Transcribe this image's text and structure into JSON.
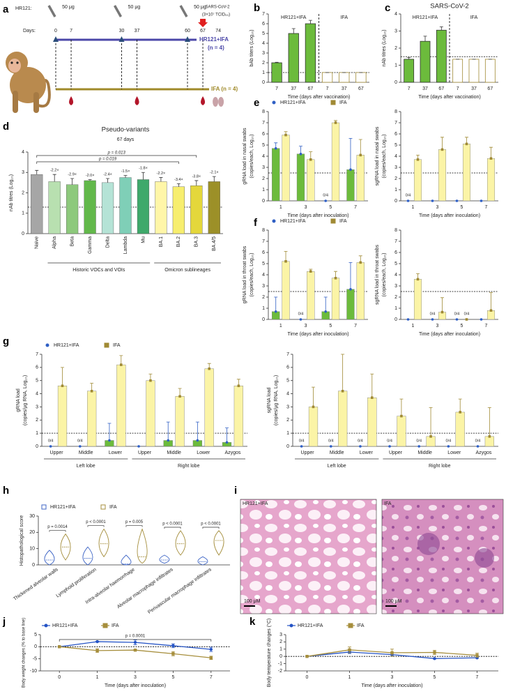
{
  "panels": [
    "a",
    "b",
    "c",
    "d",
    "e",
    "f",
    "g",
    "h",
    "i",
    "j",
    "k"
  ],
  "schematic": {
    "label": "HR121:",
    "doses": [
      "50 μg",
      "50 μg",
      "50 μg"
    ],
    "challenge": [
      "SARS-CoV-2",
      "(3×10⁷ TCID₅₀)"
    ],
    "days_label": "Days:",
    "days": [
      0,
      7,
      30,
      37,
      60,
      67,
      74
    ],
    "group1": [
      "HR121+IFA",
      "(n = 4)"
    ],
    "group2": "IFA (n = 4)"
  },
  "histology": {
    "left_label": "HR121+IFA",
    "right_label": "IFA",
    "scale_bars": [
      "100 μM",
      "100 μM"
    ]
  },
  "chart_data": [
    {
      "type": "bar",
      "layout": "split",
      "ylabel": "bAb titers (Log₁₀)",
      "xlabel": "Time (days after vaccination)",
      "categories": [
        "7",
        "37",
        "67"
      ],
      "ylim": [
        0,
        7
      ],
      "yticks": [
        0,
        1,
        2,
        3,
        4,
        5,
        6,
        7
      ],
      "threshold": 1,
      "series": [
        {
          "name": "HR121+IFA",
          "color": "#6cbb3c",
          "edge_color": "#333333",
          "values": [
            2.0,
            5.0,
            6.0
          ],
          "errors": [
            0.05,
            0.5,
            0.35
          ]
        },
        {
          "name": "IFA",
          "color": "#ffffff",
          "edge_color": "#a08a34",
          "values": [
            1,
            1,
            1
          ],
          "errors": [
            0,
            0,
            0
          ]
        }
      ]
    },
    {
      "type": "bar",
      "layout": "split",
      "title": "SARS-CoV-2",
      "ylabel": "nAb titres (Log₁₀)",
      "xlabel": "Time (days after vaccination)",
      "categories": [
        "7",
        "37",
        "67"
      ],
      "ylim": [
        0,
        4
      ],
      "yticks": [
        0,
        1,
        2,
        3,
        4
      ],
      "threshold": 1.5,
      "series": [
        {
          "name": "HR121+IFA",
          "color": "#6cbb3c",
          "edge_color": "#333333",
          "values": [
            1.35,
            2.4,
            3.05
          ],
          "errors": [
            0.1,
            0.3,
            0.2
          ]
        },
        {
          "name": "IFA",
          "color": "#ffffff",
          "edge_color": "#a08a34",
          "values": [
            1.35,
            1.35,
            1.35
          ],
          "errors": [
            0,
            0,
            0
          ]
        }
      ]
    },
    {
      "type": "bar",
      "title": "Pseudo-variants",
      "subtitle": "67 days",
      "ylabel": "nAb titres (Log₁₀)",
      "categories": [
        "Naive",
        "Alpha",
        "Beta",
        "Gamma",
        "Delta",
        "Lambda",
        "Mu",
        "BA.1",
        "BA.2",
        "BA.3",
        "BA.4/5"
      ],
      "values": [
        2.9,
        2.55,
        2.4,
        2.6,
        2.5,
        2.75,
        2.65,
        2.55,
        2.3,
        2.35,
        2.55
      ],
      "errors": [
        0.2,
        0.35,
        0.3,
        0.05,
        0.2,
        0.1,
        0.35,
        0.2,
        0.15,
        0.25,
        0.25
      ],
      "colors": [
        "#a6a6a6",
        "#b8e0b0",
        "#8dc97c",
        "#62b84a",
        "#b5e3d6",
        "#7fcfb7",
        "#3fa96b",
        "#fff6a8",
        "#f7ee6e",
        "#e4d73b",
        "#9c9028"
      ],
      "fold_labels": [
        null,
        "-2.2×",
        "-2.9×",
        "-2.0×",
        "-2.4×",
        "-1.5×",
        "-1.8×",
        "-2.2×",
        "-3.4×",
        "-3.8×",
        "-2.1×"
      ],
      "p_labels": [
        "p = 0.013",
        "p = 0.019"
      ],
      "groups": [
        "Historic VOCs and VOIs",
        "Omicron sublineages"
      ],
      "ylim": [
        0,
        4
      ],
      "yticks": [
        0,
        1,
        2,
        3,
        4
      ],
      "threshold": 1.3
    },
    {
      "type": "bar",
      "legend": "top",
      "ylabel": [
        "gRNA load in nasal swabs",
        "(copies/each, Log₁₀)"
      ],
      "xlabel": "Time (days after inoculation)",
      "categories": [
        "1",
        "3",
        "5",
        "7"
      ],
      "ylim": [
        0,
        8
      ],
      "yticks": [
        0,
        1,
        2,
        3,
        4,
        5,
        6,
        7,
        8
      ],
      "threshold": 2.5,
      "series": [
        {
          "name": "HR121+IFA",
          "color": "#2f5fc4",
          "bar_color": "#6cbb3c",
          "marker": "circle",
          "values": [
            4.7,
            4.2,
            0,
            2.8
          ],
          "errors": [
            0.5,
            0.7,
            0,
            2.8
          ],
          "positive_counts": [
            null,
            null,
            "0/4",
            null
          ]
        },
        {
          "name": "IFA",
          "color": "#a08a34",
          "bar_color": "#fbf4a6",
          "marker": "square",
          "values": [
            5.9,
            3.7,
            7.0,
            4.1
          ],
          "errors": [
            0.3,
            0.7,
            0.2,
            1.4
          ],
          "positive_counts": [
            null,
            null,
            null,
            null
          ]
        }
      ]
    },
    {
      "type": "bar",
      "ylabel": [
        "sgRNA load in nasal swabs",
        "(copies/each, Log₁₀)"
      ],
      "xlabel": "Time (days after inoculation)",
      "categories": [
        "1",
        "3",
        "5",
        "7"
      ],
      "ylim": [
        0,
        8
      ],
      "yticks": [
        0,
        1,
        2,
        3,
        4,
        5,
        6,
        7,
        8
      ],
      "threshold": 2.5,
      "series": [
        {
          "name": "HR121+IFA",
          "color": "#2f5fc4",
          "bar_color": "#6cbb3c",
          "marker": "circle",
          "values": [
            0,
            0,
            0,
            0
          ],
          "errors": [
            0,
            0,
            0,
            0
          ],
          "positive_counts": [
            "0/4",
            null,
            null,
            null
          ]
        },
        {
          "name": "IFA",
          "color": "#a08a34",
          "bar_color": "#fbf4a6",
          "marker": "square",
          "values": [
            3.7,
            4.6,
            5.1,
            3.8
          ],
          "errors": [
            0.4,
            1.1,
            0.6,
            1.0
          ],
          "positive_counts": [
            null,
            null,
            null,
            null
          ]
        }
      ]
    },
    {
      "type": "bar",
      "legend": "top",
      "ylabel": [
        "gRNA load in throat swabs",
        "(copies/each, Log₁₀)"
      ],
      "xlabel": "Time (days after inoculation)",
      "categories": [
        "1",
        "3",
        "5",
        "7"
      ],
      "ylim": [
        0,
        8
      ],
      "yticks": [
        0,
        1,
        2,
        3,
        4,
        5,
        6,
        7,
        8
      ],
      "threshold": 2.5,
      "series": [
        {
          "name": "HR121+IFA",
          "color": "#2f5fc4",
          "bar_color": "#6cbb3c",
          "marker": "circle",
          "values": [
            0.7,
            0,
            0.7,
            2.7
          ],
          "errors": [
            1.3,
            0,
            1.3,
            2.4
          ],
          "positive_counts": [
            null,
            "0/4",
            null,
            null
          ]
        },
        {
          "name": "IFA",
          "color": "#a08a34",
          "bar_color": "#fbf4a6",
          "marker": "square",
          "values": [
            5.2,
            4.3,
            3.7,
            5.1
          ],
          "errors": [
            0.9,
            0.2,
            0.6,
            0.6
          ],
          "positive_counts": [
            null,
            null,
            null,
            null
          ]
        }
      ]
    },
    {
      "type": "bar",
      "ylabel": [
        "sgRNA load in throat swabs",
        "(copies/each, Log₁₀)"
      ],
      "xlabel": "Time (days after inoculation)",
      "categories": [
        "1",
        "3",
        "5",
        "7"
      ],
      "ylim": [
        0,
        8
      ],
      "yticks": [
        0,
        1,
        2,
        3,
        4,
        5,
        6,
        7,
        8
      ],
      "threshold": 2.5,
      "series": [
        {
          "name": "HR121+IFA",
          "color": "#2f5fc4",
          "bar_color": "#6cbb3c",
          "marker": "circle",
          "values": [
            0,
            0,
            0,
            0
          ],
          "errors": [
            0,
            0,
            0,
            0
          ],
          "positive_counts": [
            null,
            "0/4",
            "0/4",
            null
          ]
        },
        {
          "name": "IFA",
          "color": "#a08a34",
          "bar_color": "#fbf4a6",
          "marker": "square",
          "values": [
            3.6,
            0.65,
            0,
            0.8
          ],
          "errors": [
            0.5,
            1.3,
            0,
            1.6
          ],
          "positive_counts": [
            null,
            null,
            "0/4",
            null
          ]
        }
      ]
    },
    {
      "type": "bar",
      "legend": "top",
      "ylabel": [
        "gRNA load",
        "(copies/μg RNA, Log₁₀)"
      ],
      "categories": [
        "Upper",
        "Middle",
        "Lower",
        "Upper",
        "Middle",
        "Lower",
        "Azygos"
      ],
      "groups": [
        "Left lobe",
        "Right lobe"
      ],
      "ylim": [
        0,
        7
      ],
      "yticks": [
        0,
        1,
        2,
        3,
        4,
        5,
        6,
        7
      ],
      "threshold": 1,
      "series": [
        {
          "name": "HR121+IFA",
          "color": "#2f5fc4",
          "bar_color": "#6cbb3c",
          "marker": "circle",
          "values": [
            0,
            0,
            0.45,
            0,
            0.45,
            0.45,
            0.3
          ],
          "errors": [
            0,
            0,
            1.3,
            0,
            1.4,
            1.4,
            1.1
          ],
          "positive_counts": [
            "0/4",
            "0/4",
            null,
            null,
            null,
            null,
            null
          ]
        },
        {
          "name": "IFA",
          "color": "#a08a34",
          "bar_color": "#fbf4a6",
          "marker": "square",
          "values": [
            4.6,
            4.2,
            6.2,
            5.0,
            3.8,
            5.9,
            4.6
          ],
          "errors": [
            1.4,
            0.6,
            0.7,
            0.5,
            0.6,
            0.4,
            0.5
          ],
          "positive_counts": [
            null,
            null,
            null,
            null,
            null,
            null,
            null
          ]
        }
      ]
    },
    {
      "type": "bar",
      "ylabel": [
        "sgRNA load",
        "(copies/μg RNA, Log₁₀)"
      ],
      "categories": [
        "Upper",
        "Middle",
        "Lower",
        "Upper",
        "Middle",
        "Lower",
        "Azygos"
      ],
      "groups": [
        "Left lobe",
        "Right lobe"
      ],
      "ylim": [
        0,
        7
      ],
      "yticks": [
        0,
        1,
        2,
        3,
        4,
        5,
        6,
        7
      ],
      "threshold": 1,
      "series": [
        {
          "name": "HR121+IFA",
          "color": "#2f5fc4",
          "bar_color": "#6cbb3c",
          "marker": "circle",
          "values": [
            0,
            0,
            0,
            0,
            0,
            0,
            0
          ],
          "errors": [
            0,
            0,
            0,
            0,
            0,
            0,
            0
          ],
          "positive_counts": [
            "0/4",
            "0/4",
            "0/4",
            "0/4",
            "0/4",
            "0/4",
            "0/4"
          ]
        },
        {
          "name": "IFA",
          "color": "#a08a34",
          "bar_color": "#fbf4a6",
          "marker": "square",
          "values": [
            3.0,
            4.2,
            3.7,
            2.3,
            0.75,
            2.6,
            0.75
          ],
          "errors": [
            1.5,
            2.8,
            1.8,
            1.3,
            2.2,
            1.0,
            2.2
          ],
          "positive_counts": [
            null,
            null,
            null,
            null,
            null,
            null,
            null
          ]
        }
      ]
    },
    {
      "type": "violin",
      "legend": "top",
      "ylabel": "Histopathological score",
      "categories": [
        "Thickened alveolar walls",
        "Lymphoid proliferation",
        "Intra-alveolar haemorrhage",
        "Alveolar macrophage infiltrates",
        "Perivascular macrophage infiltrates"
      ],
      "ylim": [
        0,
        30
      ],
      "yticks": [
        0,
        10,
        20,
        30
      ],
      "p_labels": [
        "p = 0.0014",
        "p < 0.0001",
        "p = 0.005",
        "p < 0.0001",
        "p < 0.0001"
      ],
      "series": [
        {
          "name": "HR121+IFA",
          "color": "#3f66c6",
          "marker": "square",
          "median": [
            3,
            4,
            0.5,
            3,
            2
          ],
          "min": [
            0,
            0,
            0,
            1,
            0
          ],
          "max": [
            9,
            11,
            6,
            6,
            5
          ]
        },
        {
          "name": "IFA",
          "color": "#a48d3b",
          "marker": "square",
          "median": [
            11,
            13,
            5,
            13,
            15
          ],
          "min": [
            3,
            5,
            1,
            6,
            6
          ],
          "max": [
            19,
            22,
            22,
            21,
            21
          ]
        }
      ]
    },
    {
      "type": "line",
      "legend": "top",
      "ylabel": "Body weight changes (% to base line)",
      "xlabel": "Time (days after inoculation)",
      "categories": [
        "0",
        "1",
        "3",
        "5",
        "7"
      ],
      "ylim": [
        -10,
        5
      ],
      "yticks": [
        -10,
        -5,
        0,
        5
      ],
      "reference": 0,
      "p_label": "p = 0.0001",
      "series": [
        {
          "name": "HR121+IFA",
          "color": "#2453c5",
          "marker": "circle",
          "values": [
            0,
            2.1,
            1.8,
            0.4,
            -1.1
          ],
          "errors": [
            0,
            0.2,
            1.0,
            0.8,
            0.9
          ]
        },
        {
          "name": "IFA",
          "color": "#a68e3c",
          "marker": "square",
          "values": [
            0,
            -1.6,
            -1.4,
            -2.9,
            -4.6
          ],
          "errors": [
            0,
            0.8,
            0.2,
            0.9,
            0.7
          ]
        }
      ]
    },
    {
      "type": "line",
      "legend": "top",
      "ylabel": "Body temperature changes (°C)",
      "xlabel": "Time (days after inoculation)",
      "categories": [
        "0",
        "1",
        "3",
        "5",
        "7"
      ],
      "ylim": [
        -2,
        3
      ],
      "yticks": [
        -2,
        -1,
        0,
        1,
        2,
        3
      ],
      "reference": 0,
      "series": [
        {
          "name": "HR121+IFA",
          "color": "#2453c5",
          "marker": "circle",
          "values": [
            0,
            0.6,
            0.25,
            -0.3,
            -0.2
          ],
          "errors": [
            0,
            0.2,
            0.2,
            0.05,
            0.05
          ]
        },
        {
          "name": "IFA",
          "color": "#a68e3c",
          "marker": "square",
          "values": [
            0,
            0.9,
            0.5,
            0.55,
            0.15
          ],
          "errors": [
            0,
            0.4,
            0.5,
            0.3,
            0.3
          ]
        }
      ]
    }
  ]
}
